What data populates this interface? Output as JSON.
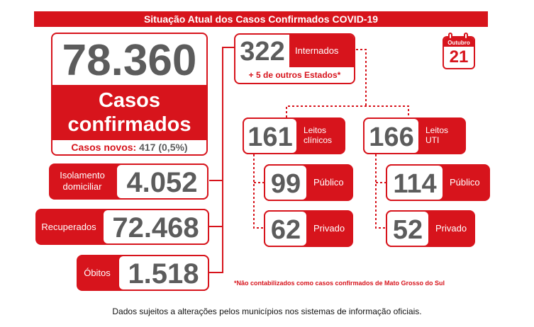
{
  "header": {
    "title": "Situação Atual dos Casos Confirmados COVID-19"
  },
  "calendar": {
    "month": "Outubro",
    "day": "21"
  },
  "confirmed": {
    "value": "78.360",
    "label_line1": "Casos",
    "label_line2": "confirmados",
    "new_label": "Casos novos:",
    "new_value": "417 (0,5%)"
  },
  "isolation": {
    "label_line1": "Isolamento",
    "label_line2": "domiciliar",
    "value": "4.052"
  },
  "recovered": {
    "label": "Recuperados",
    "value": "72.468"
  },
  "deaths": {
    "label": "Óbitos",
    "value": "1.518"
  },
  "hospitalized": {
    "value": "322",
    "label": "Internados",
    "other_states": "+ 5 de outros Estados*"
  },
  "clinical": {
    "value": "161",
    "label_line1": "Leitos",
    "label_line2": "clínicos",
    "public_value": "99",
    "public_label": "Público",
    "private_value": "62",
    "private_label": "Privado"
  },
  "icu": {
    "value": "166",
    "label_line1": "Leitos",
    "label_line2": "UTI",
    "public_value": "114",
    "public_label": "Público",
    "private_value": "52",
    "private_label": "Privado"
  },
  "footnote": "*Não contabilizados como casos confirmados de Mato Grosso do Sul",
  "disclaimer": "Dados sujeitos a alterações pelos municípios nos sistemas de informação oficiais.",
  "colors": {
    "accent": "#d7141c",
    "number": "#5c5c5c"
  }
}
